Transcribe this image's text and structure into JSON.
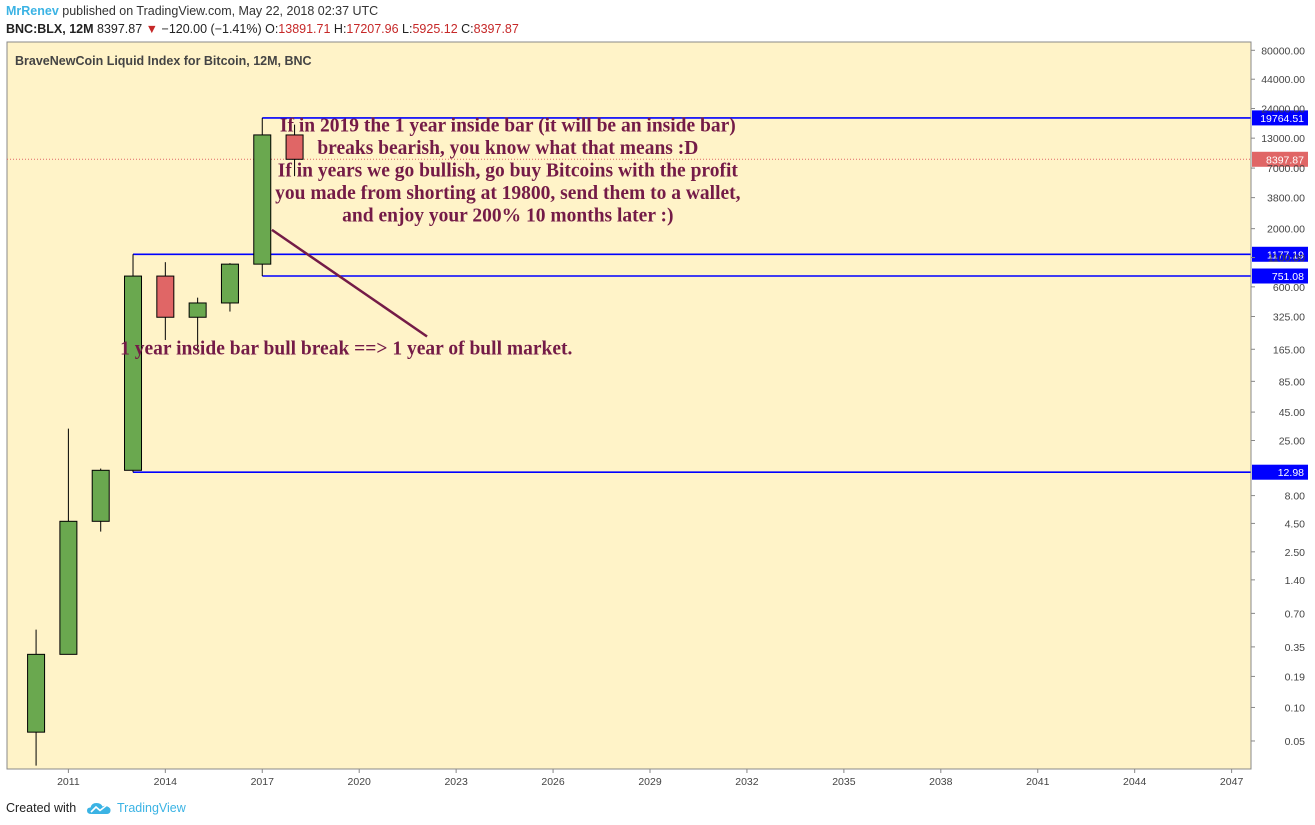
{
  "header": {
    "author": "MrRenev",
    "published_text": "published on TradingView.com, May 22, 2018 02:37 UTC",
    "symbol": "BNC:BLX, 12M",
    "last": "8397.87",
    "change_arrow": "▼",
    "change": "−120.00 (−1.41%)",
    "open_label": "O:",
    "open": "13891.71",
    "high_label": "H:",
    "high": "17207.96",
    "low_label": "L:",
    "low": "5925.12",
    "close_label": "C:",
    "close": "8397.87"
  },
  "footer": {
    "created_with": "Created with",
    "brand": "TradingView",
    "logo_icon": "tradingview-cloud-icon"
  },
  "chart_data": {
    "type": "candlestick",
    "title": "BraveNewCoin Liquid Index for Bitcoin, 12M, BNC",
    "y_scale": "log",
    "ylim": [
      0.028,
      95000
    ],
    "xlim": [
      2009.1,
      2047.6
    ],
    "x_ticks": [
      "2011",
      "2014",
      "2017",
      "2020",
      "2023",
      "2026",
      "2029",
      "2032",
      "2035",
      "2038",
      "2041",
      "2044",
      "2047"
    ],
    "y_ticks": [
      "80000.00",
      "44000.00",
      "24000.00",
      "13000.00",
      "7000.00",
      "3800.00",
      "2000.00",
      "1100.00",
      "600.00",
      "325.00",
      "165.00",
      "85.00",
      "45.00",
      "25.00",
      "8.00",
      "4.50",
      "2.50",
      "1.40",
      "0.70",
      "0.35",
      "0.19",
      "0.10",
      "0.05"
    ],
    "candles": [
      {
        "x": 2010,
        "open": 0.06,
        "high": 0.5,
        "low": 0.03,
        "close": 0.3,
        "dir": "up"
      },
      {
        "x": 2011,
        "open": 0.3,
        "high": 32,
        "low": 0.3,
        "close": 4.7,
        "dir": "up"
      },
      {
        "x": 2012,
        "open": 4.7,
        "high": 14,
        "low": 3.8,
        "close": 13.5,
        "dir": "up"
      },
      {
        "x": 2013,
        "open": 13.5,
        "high": 1177.19,
        "low": 12.98,
        "close": 750,
        "dir": "up"
      },
      {
        "x": 2014,
        "open": 750,
        "high": 1000,
        "low": 200,
        "close": 320,
        "dir": "down"
      },
      {
        "x": 2015,
        "open": 320,
        "high": 480,
        "low": 160,
        "close": 430,
        "dir": "up"
      },
      {
        "x": 2016,
        "open": 430,
        "high": 980,
        "low": 360,
        "close": 960,
        "dir": "up"
      },
      {
        "x": 2017,
        "open": 960,
        "high": 19764.51,
        "low": 751.08,
        "close": 13900,
        "dir": "up"
      },
      {
        "x": 2018,
        "open": 13891.71,
        "high": 17207.96,
        "low": 5925.12,
        "close": 8397.87,
        "dir": "down"
      }
    ],
    "levels": [
      {
        "label": "19764.51",
        "value": 19764.51,
        "from": 2017
      },
      {
        "label": "1177.19",
        "value": 1177.19,
        "from": 2013
      },
      {
        "label": "751.08",
        "value": 751.08,
        "from": 2017
      },
      {
        "label": "12.98",
        "value": 12.98,
        "from": 2013
      }
    ],
    "last_price": {
      "label": "8397.87",
      "value": 8397.87
    },
    "annotations": [
      {
        "lines": [
          "If in 2019 the 1 year inside bar (it will be an inside bar)",
          "breaks bearish, you know what that means :D",
          "If in years we go bullish, go buy Bitcoins with the profit",
          "you made from shorting at 19800, send them to a wallet,",
          "and enjoy your 200% 10 months later :)"
        ],
        "x": 2024.6,
        "y": 16500
      },
      {
        "lines": [
          "1 year inside bar bull break ==> 1 year of bull market."
        ],
        "x": 2019.6,
        "y": 165
      }
    ],
    "trend_line": {
      "x1": 2017.3,
      "y1": 1950,
      "x2": 2022.1,
      "y2": 215
    },
    "colors": {
      "background": "#FFF3C8",
      "up": "#6AA84F",
      "down": "#E06666",
      "level": "#0000FF",
      "text": "#741B47",
      "last_line": "#E06666"
    }
  }
}
